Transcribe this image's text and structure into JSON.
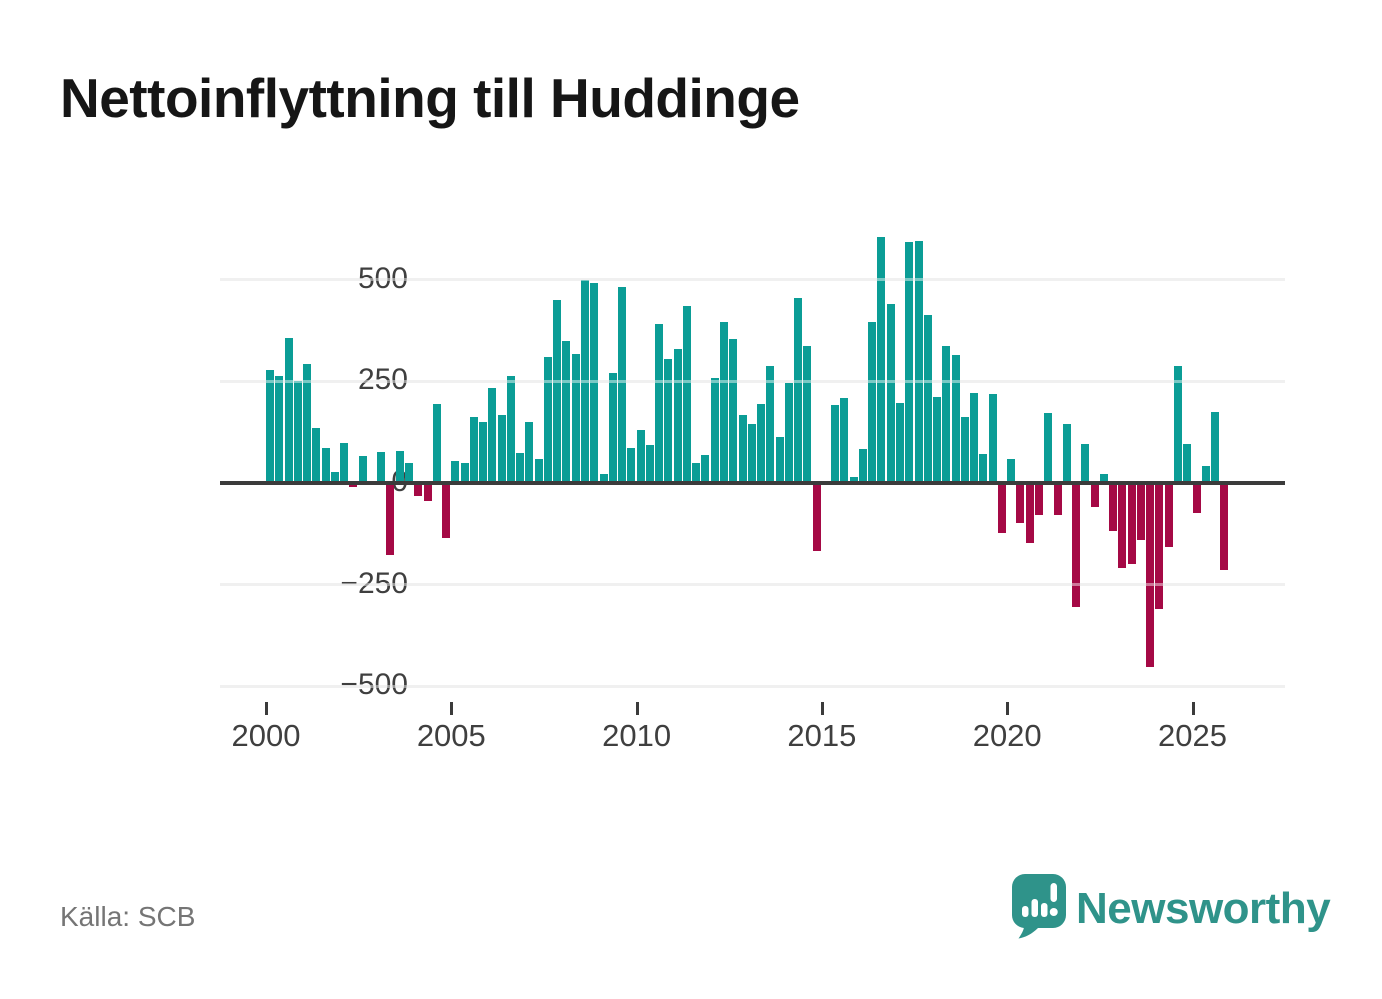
{
  "header": {
    "title": "Nettoinflyttning till Huddinge"
  },
  "footer": {
    "source_label": "Källa: SCB",
    "brand": "Newsworthy"
  },
  "icons": {
    "logo": "newsworthy-speech-bubble-bar-chart-icon"
  },
  "chart_data": {
    "type": "bar",
    "title": "Nettoinflyttning till Huddinge",
    "frequency": "quarterly",
    "start_period": "2000-Q1",
    "end_period": "2025-Q4",
    "values": [
      278,
      262,
      356,
      251,
      292,
      134,
      86,
      28,
      99,
      -10,
      67,
      2,
      76,
      -176,
      79,
      49,
      -31,
      -44,
      193,
      -135,
      54,
      50,
      163,
      149,
      233,
      166,
      262,
      73,
      149,
      60,
      310,
      450,
      349,
      318,
      500,
      491,
      21,
      271,
      483,
      87,
      130,
      93,
      390,
      305,
      330,
      434,
      48,
      70,
      257,
      396,
      355,
      167,
      146,
      195,
      288,
      112,
      246,
      454,
      337,
      -168,
      2,
      191,
      208,
      15,
      83,
      396,
      605,
      439,
      196,
      593,
      595,
      414,
      211,
      336,
      314,
      162,
      221,
      72,
      219,
      -123,
      60,
      -98,
      -147,
      -79,
      172,
      -78,
      145,
      -305,
      95,
      -59,
      22,
      -118,
      -210,
      -200,
      -140,
      -452,
      -310,
      -157,
      287,
      96,
      -73,
      41,
      175,
      -215
    ],
    "y_ticks": [
      500,
      250,
      0,
      -250,
      -500
    ],
    "x_tick_years": [
      "2000",
      "2005",
      "2010",
      "2015",
      "2020",
      "2025"
    ],
    "ylim": [
      -560,
      627
    ],
    "grid": "horizontal",
    "legend": "none",
    "colors": {
      "positive": "#0b9d96",
      "negative": "#a50945",
      "zero_line": "#3b3b3b",
      "gridline": "#e3e3e3",
      "axis_text": "#3f3f3f",
      "title_text": "#161616",
      "source_text": "#757575",
      "brand_teal": "#2f938a"
    },
    "source": "SCB"
  }
}
